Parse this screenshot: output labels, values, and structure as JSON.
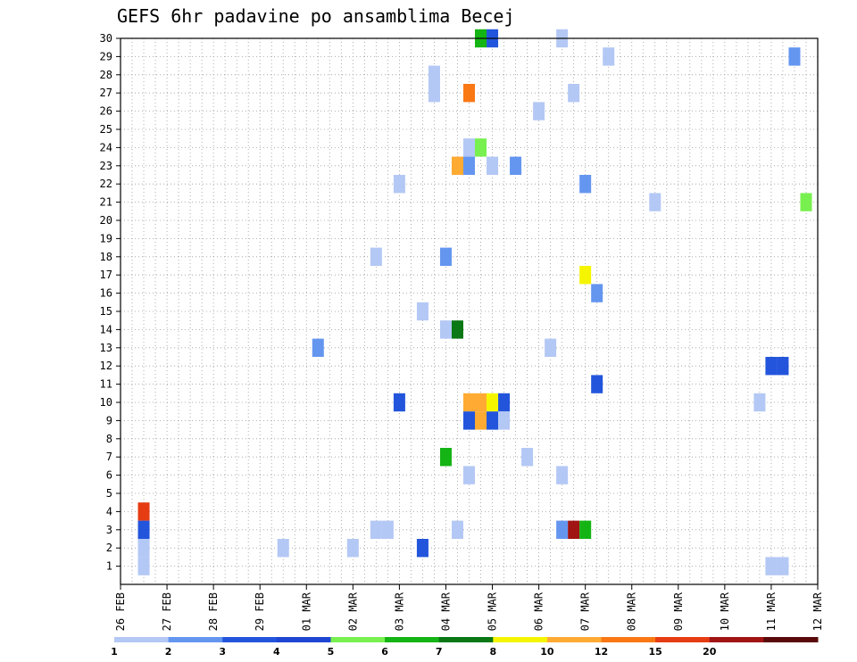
{
  "chart_data": {
    "type": "heatmap",
    "title": "GEFS 6hr padavine po ansamblima Becej",
    "xlabel": "",
    "ylabel": "",
    "x_ticks": [
      "26 FEB",
      "27 FEB",
      "28 FEB",
      "29 FEB",
      "01 MAR",
      "02 MAR",
      "03 MAR",
      "04 MAR",
      "05 MAR",
      "06 MAR",
      "07 MAR",
      "08 MAR",
      "09 MAR",
      "10 MAR",
      "11 MAR",
      "12 MAR"
    ],
    "y_ticks": [
      "1",
      "2",
      "3",
      "4",
      "5",
      "6",
      "7",
      "8",
      "9",
      "10",
      "11",
      "12",
      "13",
      "14",
      "15",
      "16",
      "17",
      "18",
      "19",
      "20",
      "21",
      "22",
      "23",
      "24",
      "25",
      "26",
      "27",
      "28",
      "29",
      "30"
    ],
    "x_range_days": [
      0,
      15
    ],
    "y_range": [
      0,
      30
    ],
    "time_step_hours": 6,
    "grid": true,
    "grid_style": "dotted",
    "colorbar": {
      "position": "bottom",
      "bounds": [
        "1",
        "2",
        "3",
        "4",
        "5",
        "6",
        "7",
        "8",
        "10",
        "12",
        "15",
        "20"
      ],
      "colors": [
        "#b4c8f5",
        "#6496f0",
        "#2355dc",
        "#1e46d2",
        "#78f050",
        "#14b414",
        "#0a7814",
        "#f5f500",
        "#ffaa32",
        "#fa7814",
        "#e63c14",
        "#a01414",
        "#5a0a0a"
      ]
    },
    "points": [
      {
        "t": 0.5,
        "m": 4,
        "c": "#e63c14"
      },
      {
        "t": 0.5,
        "m": 3,
        "c": "#2355dc"
      },
      {
        "t": 0.5,
        "m": 2,
        "c": "#b4c8f5"
      },
      {
        "t": 0.5,
        "m": 1,
        "c": "#b4c8f5"
      },
      {
        "t": 3.5,
        "m": 2,
        "c": "#b4c8f5"
      },
      {
        "t": 4.25,
        "m": 13,
        "c": "#6496f0"
      },
      {
        "t": 5.0,
        "m": 2,
        "c": "#b4c8f5"
      },
      {
        "t": 5.5,
        "m": 3,
        "c": "#b4c8f5"
      },
      {
        "t": 5.75,
        "m": 3,
        "c": "#b4c8f5"
      },
      {
        "t": 5.5,
        "m": 18,
        "c": "#b4c8f5"
      },
      {
        "t": 6.0,
        "m": 22,
        "c": "#b4c8f5"
      },
      {
        "t": 6.0,
        "m": 10,
        "c": "#2355dc"
      },
      {
        "t": 6.5,
        "m": 15,
        "c": "#b4c8f5"
      },
      {
        "t": 6.5,
        "m": 2,
        "c": "#2355dc"
      },
      {
        "t": 6.75,
        "m": 27,
        "c": "#b4c8f5"
      },
      {
        "t": 6.75,
        "m": 28,
        "c": "#b4c8f5"
      },
      {
        "t": 7.0,
        "m": 18,
        "c": "#6496f0"
      },
      {
        "t": 7.0,
        "m": 14,
        "c": "#b4c8f5"
      },
      {
        "t": 7.0,
        "m": 7,
        "c": "#14b414"
      },
      {
        "t": 7.25,
        "m": 14,
        "c": "#0a7814"
      },
      {
        "t": 7.25,
        "m": 23,
        "c": "#ffaa32"
      },
      {
        "t": 7.25,
        "m": 3,
        "c": "#b4c8f5"
      },
      {
        "t": 7.5,
        "m": 27,
        "c": "#fa7814"
      },
      {
        "t": 7.5,
        "m": 24,
        "c": "#b4c8f5"
      },
      {
        "t": 7.5,
        "m": 23,
        "c": "#6496f0"
      },
      {
        "t": 7.5,
        "m": 10,
        "c": "#ffaa32"
      },
      {
        "t": 7.5,
        "m": 9,
        "c": "#2355dc"
      },
      {
        "t": 7.5,
        "m": 6,
        "c": "#b4c8f5"
      },
      {
        "t": 7.75,
        "m": 30,
        "c": "#14b414"
      },
      {
        "t": 7.75,
        "m": 24,
        "c": "#78f050"
      },
      {
        "t": 7.75,
        "m": 10,
        "c": "#ffaa32"
      },
      {
        "t": 7.75,
        "m": 9,
        "c": "#ffaa32"
      },
      {
        "t": 8.0,
        "m": 30,
        "c": "#2355dc"
      },
      {
        "t": 8.0,
        "m": 23,
        "c": "#b4c8f5"
      },
      {
        "t": 8.0,
        "m": 10,
        "c": "#f5f500"
      },
      {
        "t": 8.0,
        "m": 9,
        "c": "#2355dc"
      },
      {
        "t": 8.25,
        "m": 10,
        "c": "#2355dc"
      },
      {
        "t": 8.25,
        "m": 9,
        "c": "#b4c8f5"
      },
      {
        "t": 8.5,
        "m": 23,
        "c": "#6496f0"
      },
      {
        "t": 8.75,
        "m": 7,
        "c": "#b4c8f5"
      },
      {
        "t": 9.0,
        "m": 26,
        "c": "#b4c8f5"
      },
      {
        "t": 9.25,
        "m": 13,
        "c": "#b4c8f5"
      },
      {
        "t": 9.5,
        "m": 30,
        "c": "#b4c8f5"
      },
      {
        "t": 9.5,
        "m": 6,
        "c": "#b4c8f5"
      },
      {
        "t": 9.5,
        "m": 3,
        "c": "#6496f0"
      },
      {
        "t": 9.75,
        "m": 27,
        "c": "#b4c8f5"
      },
      {
        "t": 9.75,
        "m": 3,
        "c": "#a01414"
      },
      {
        "t": 10.0,
        "m": 22,
        "c": "#6496f0"
      },
      {
        "t": 10.0,
        "m": 17,
        "c": "#f5f500"
      },
      {
        "t": 10.0,
        "m": 3,
        "c": "#14b414"
      },
      {
        "t": 10.25,
        "m": 16,
        "c": "#6496f0"
      },
      {
        "t": 10.25,
        "m": 11,
        "c": "#2355dc"
      },
      {
        "t": 10.5,
        "m": 29,
        "c": "#b4c8f5"
      },
      {
        "t": 11.5,
        "m": 21,
        "c": "#b4c8f5"
      },
      {
        "t": 13.75,
        "m": 10,
        "c": "#b4c8f5"
      },
      {
        "t": 14.0,
        "m": 12,
        "c": "#2355dc"
      },
      {
        "t": 14.25,
        "m": 12,
        "c": "#2355dc"
      },
      {
        "t": 14.0,
        "m": 1,
        "c": "#b4c8f5"
      },
      {
        "t": 14.25,
        "m": 1,
        "c": "#b4c8f5"
      },
      {
        "t": 14.5,
        "m": 29,
        "c": "#6496f0"
      },
      {
        "t": 14.75,
        "m": 21,
        "c": "#78f050"
      }
    ]
  }
}
